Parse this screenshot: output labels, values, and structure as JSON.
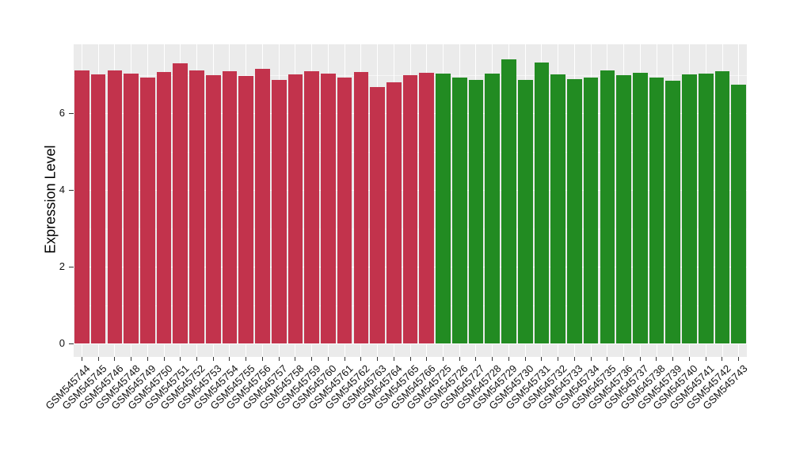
{
  "colors": {
    "page_bg": "#FFFFFF",
    "panel_bg": "#EBEBEB",
    "grid": "#FFFFFF",
    "bar_red": "#C2334C",
    "bar_green": "#228B22",
    "axis_text": "#111111",
    "axis_title": "#000000",
    "tick_mark": "#333333"
  },
  "chart_data": {
    "type": "bar",
    "title": "",
    "xlabel": "",
    "ylabel": "Expression Level",
    "ylim": [
      0,
      7.79
    ],
    "yticks": [
      0,
      2,
      4,
      6
    ],
    "yticks_minor": [
      1,
      3,
      5,
      7
    ],
    "grid": "white major and minor lines on gray panel, vertical line at each bar center",
    "legend_position": "none",
    "series": [
      {
        "name": "group-red",
        "color": "#C2334C",
        "categories": [
          "GSM545744",
          "GSM545745",
          "GSM545746",
          "GSM545748",
          "GSM545749",
          "GSM545750",
          "GSM545751",
          "GSM545752",
          "GSM545753",
          "GSM545754",
          "GSM545755",
          "GSM545756",
          "GSM545757",
          "GSM545758",
          "GSM545759",
          "GSM545760",
          "GSM545761",
          "GSM545762",
          "GSM545763",
          "GSM545764",
          "GSM545765",
          "GSM545766"
        ],
        "values": [
          7.11,
          7.02,
          7.12,
          7.04,
          6.93,
          7.07,
          7.29,
          7.11,
          6.99,
          7.09,
          6.96,
          7.16,
          6.87,
          7.02,
          7.1,
          7.04,
          6.93,
          7.07,
          6.69,
          6.81,
          7.0,
          7.06
        ]
      },
      {
        "name": "group-green",
        "color": "#228B22",
        "categories": [
          "GSM545725",
          "GSM545726",
          "GSM545727",
          "GSM545728",
          "GSM545729",
          "GSM545730",
          "GSM545731",
          "GSM545732",
          "GSM545733",
          "GSM545734",
          "GSM545735",
          "GSM545736",
          "GSM545737",
          "GSM545738",
          "GSM545739",
          "GSM545740",
          "GSM545741",
          "GSM545742",
          "GSM545743"
        ],
        "values": [
          7.04,
          6.93,
          6.87,
          7.04,
          7.41,
          6.87,
          7.33,
          7.02,
          6.89,
          6.92,
          7.11,
          6.99,
          7.05,
          6.93,
          6.84,
          7.01,
          7.04,
          7.09,
          6.74
        ]
      }
    ]
  }
}
